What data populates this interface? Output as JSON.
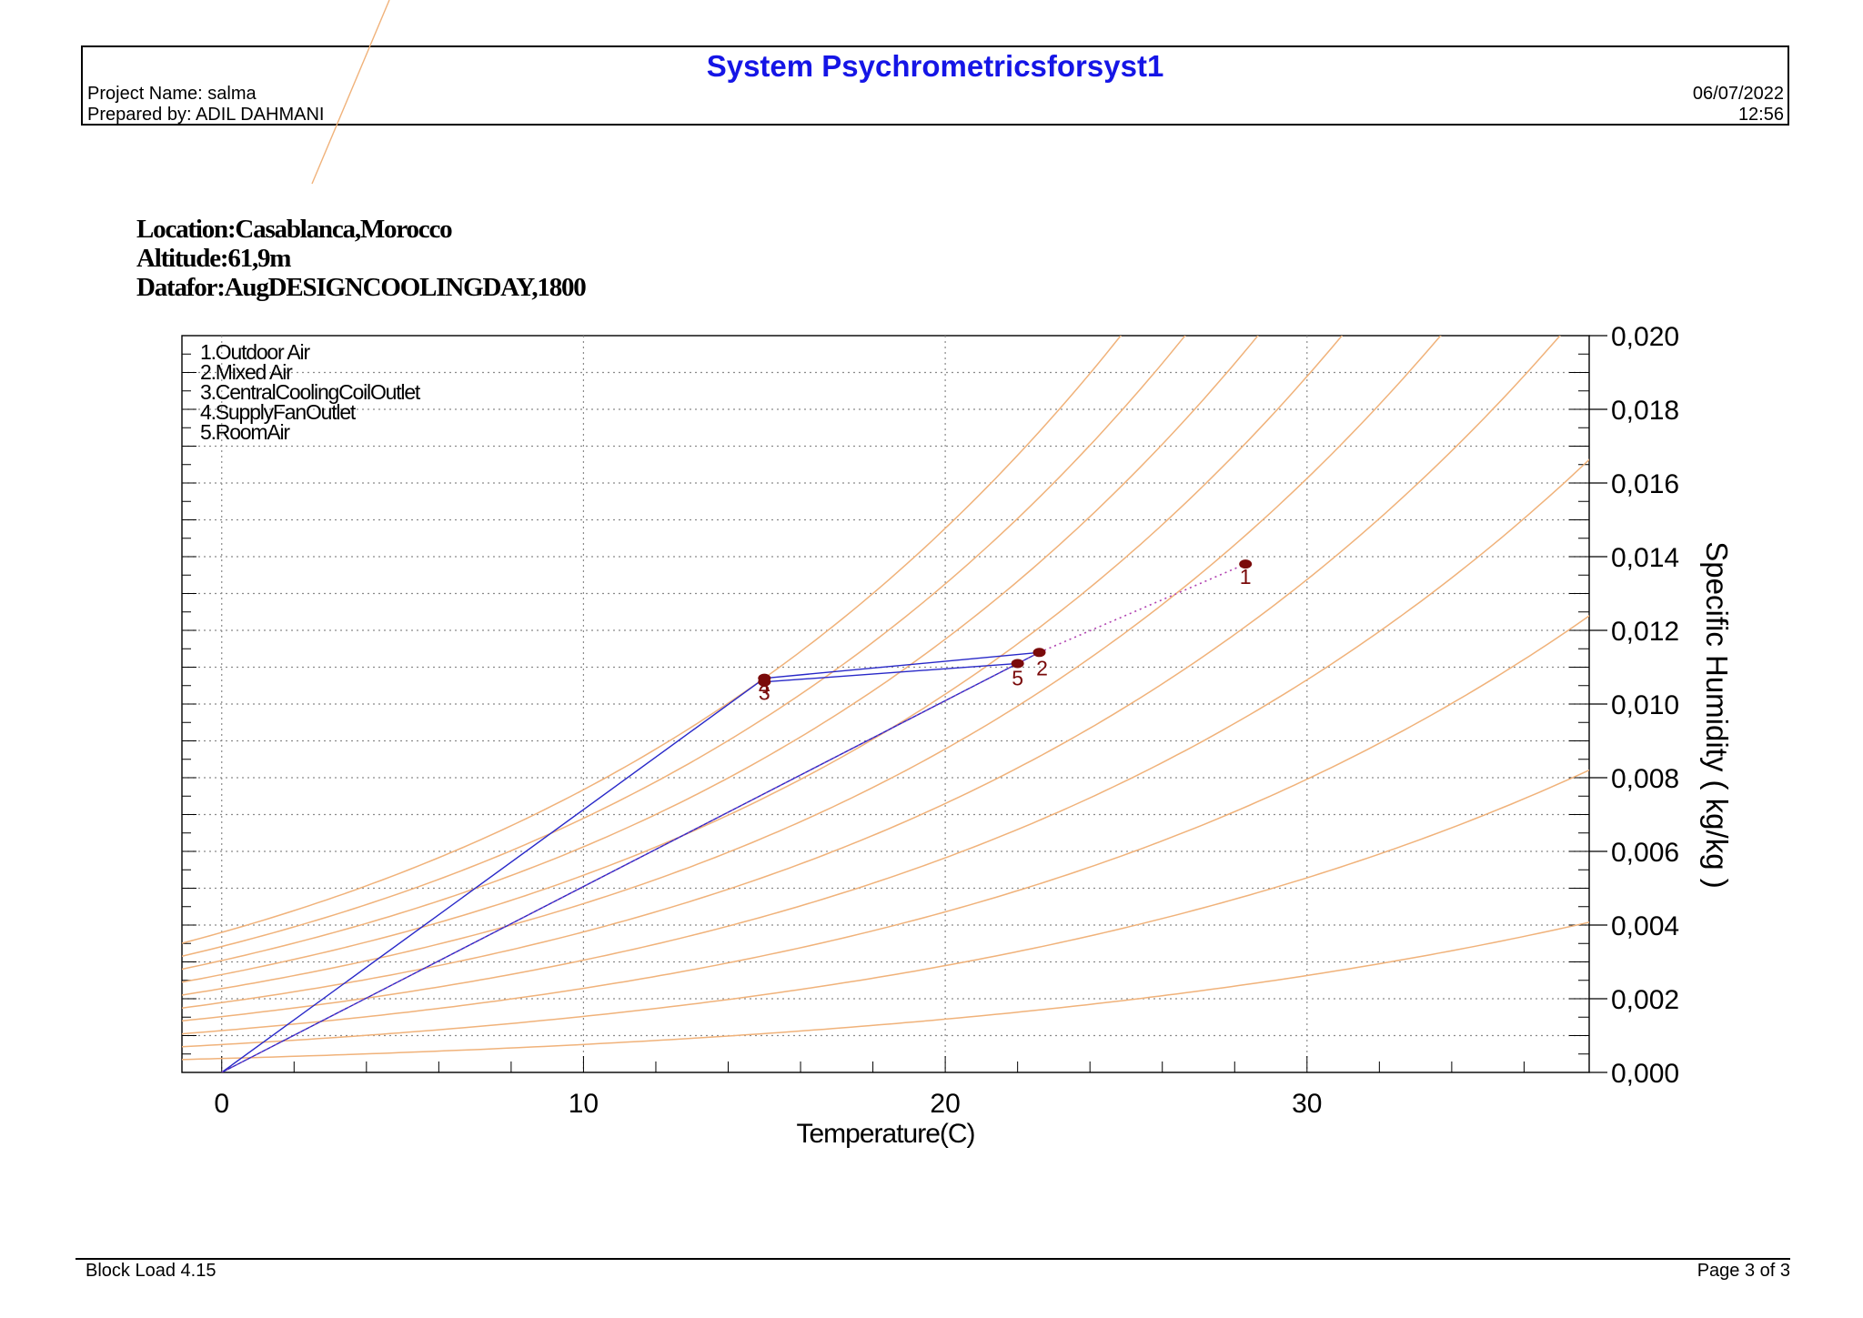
{
  "header": {
    "title": "System Psychrometricsforsyst1",
    "project_line": "Project Name: salma",
    "prepared_line": "Prepared by: ADIL DAHMANI",
    "date": "06/07/2022",
    "time": "12:56"
  },
  "location": {
    "line1": "Location:Casablanca,Morocco",
    "line2": "Altitude:61,9m",
    "line3": "Datafor:AugDESIGNCOOLINGDAY,1800"
  },
  "footer": {
    "left": "Block Load 4.15",
    "right": "Page 3 of 3"
  },
  "colors": {
    "title": "#1515e6",
    "rh_curves": "#f0b27a",
    "process_lines": "#2828c8",
    "points": "#7a0a0a"
  },
  "chart_data": {
    "type": "scatter",
    "xlabel": "Temperature(C)",
    "ylabel": "Specific Humidity ( kg/kg )",
    "xlim": [
      -1.1,
      37.8
    ],
    "ylim": [
      0,
      0.02
    ],
    "x_ticks": [
      0,
      10,
      20,
      30
    ],
    "x_tick_labels": [
      "0",
      "10",
      "20",
      "30"
    ],
    "y_ticks": [
      0,
      0.002,
      0.004,
      0.006,
      0.008,
      0.01,
      0.012,
      0.014,
      0.016,
      0.018,
      0.02
    ],
    "y_tick_labels": [
      "0,000",
      "0,002",
      "0,004",
      "0,006",
      "0,008",
      "0,010",
      "0,012",
      "0,014",
      "0,016",
      "0,018",
      "0,020"
    ],
    "grid": true,
    "legend": {
      "placement": "top-left",
      "entries": [
        "1.Outdoor Air",
        "2.Mixed Air",
        "3.CentralCoolingCoilOutlet",
        "4.SupplyFanOutlet",
        "5.RoomAir"
      ]
    },
    "points": [
      {
        "label": "1",
        "x": 28.3,
        "y": 0.0138
      },
      {
        "label": "2",
        "x": 22.6,
        "y": 0.0114
      },
      {
        "label": "3",
        "x": 15.0,
        "y": 0.0107
      },
      {
        "label": "4",
        "x": 15.0,
        "y": 0.0106
      },
      {
        "label": "5",
        "x": 22.0,
        "y": 0.0111
      }
    ],
    "rh_curves": [
      0.1,
      0.2,
      0.3,
      0.4,
      0.5,
      0.6,
      0.7,
      0.8,
      0.9,
      1.0
    ]
  }
}
